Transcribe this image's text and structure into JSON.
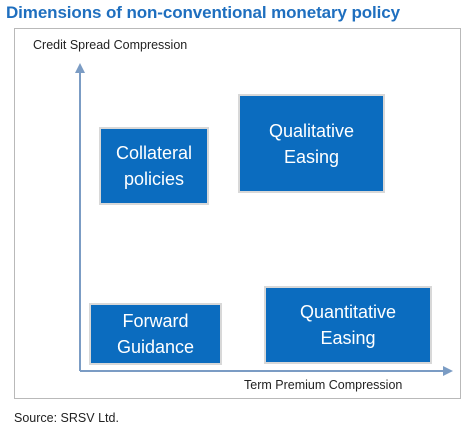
{
  "title": "Dimensions of non-conventional monetary policy",
  "axes": {
    "y_label": "Credit Spread Compression",
    "x_label": "Term Premium Compression"
  },
  "boxes": {
    "collateral_policies": {
      "line1": "Collateral",
      "line2": "policies"
    },
    "qualitative_easing": {
      "line1": "Qualitative",
      "line2": "Easing"
    },
    "forward_guidance": {
      "line1": "Forward",
      "line2": "Guidance"
    },
    "quantitative_easing": {
      "line1": "Quantitative",
      "line2": "Easing"
    }
  },
  "source": "Source: SRSV Ltd.",
  "colors": {
    "box_fill": "#0b6cbf",
    "title": "#1f6fbf",
    "axis": "#7b9cc4"
  }
}
